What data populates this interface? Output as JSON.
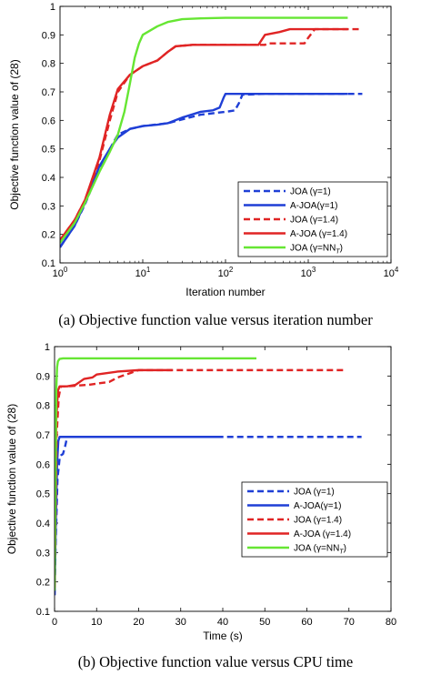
{
  "colors": {
    "blue": "#1f3fd6",
    "red": "#e02424",
    "green": "#66e633"
  },
  "legend_entries": [
    {
      "label": "JOA (γ=1)",
      "color": "blue",
      "style": "dashed"
    },
    {
      "label": "A-JOA(γ=1)",
      "color": "blue",
      "style": "solid"
    },
    {
      "label": "JOA (γ=1.4)",
      "color": "red",
      "style": "dashed"
    },
    {
      "label": "A-JOA (γ=1.4)",
      "color": "red",
      "style": "solid"
    },
    {
      "label": "JOA (γ=NN",
      "sub": "T",
      "tail": ")",
      "color": "green",
      "style": "solid"
    }
  ],
  "chart_data": [
    {
      "type": "line",
      "caption": "(a)  Objective function value versus iteration number",
      "xlabel": "Iteration number",
      "ylabel": "Objective function value of (28)",
      "xscale": "log",
      "xlim": [
        1,
        10000
      ],
      "ylim": [
        0.1,
        1
      ],
      "xticks": [
        1,
        10,
        100,
        1000,
        10000
      ],
      "xtick_labels": [
        {
          "base": "10",
          "exp": "0"
        },
        {
          "base": "10",
          "exp": "1"
        },
        {
          "base": "10",
          "exp": "2"
        },
        {
          "base": "10",
          "exp": "3"
        },
        {
          "base": "10",
          "exp": "4"
        }
      ],
      "yticks": [
        0.1,
        0.2,
        0.3,
        0.4,
        0.5,
        0.6,
        0.7,
        0.8,
        0.9,
        1
      ],
      "ytick_labels": [
        "0.1",
        "0.2",
        "0.3",
        "0.4",
        "0.5",
        "0.6",
        "0.7",
        "0.8",
        "0.9",
        "1"
      ],
      "legend_position": "center-right",
      "series": [
        {
          "legend": 0,
          "color": "blue",
          "style": "dashed",
          "x": [
            1,
            1.5,
            2,
            3,
            4,
            5,
            7,
            10,
            20,
            50,
            100,
            130,
            145,
            160,
            300,
            1000,
            2000,
            4500
          ],
          "y": [
            0.155,
            0.23,
            0.305,
            0.43,
            0.5,
            0.55,
            0.57,
            0.58,
            0.59,
            0.62,
            0.63,
            0.635,
            0.66,
            0.69,
            0.693,
            0.693,
            0.693,
            0.693
          ]
        },
        {
          "legend": 1,
          "color": "blue",
          "style": "solid",
          "x": [
            1,
            1.5,
            2,
            3,
            4,
            5,
            7,
            10,
            15,
            20,
            30,
            50,
            70,
            85,
            95,
            100,
            200,
            500,
            1000,
            3000
          ],
          "y": [
            0.155,
            0.23,
            0.31,
            0.44,
            0.5,
            0.54,
            0.57,
            0.58,
            0.585,
            0.59,
            0.61,
            0.63,
            0.635,
            0.645,
            0.68,
            0.693,
            0.693,
            0.693,
            0.693,
            0.693
          ]
        },
        {
          "legend": 2,
          "color": "red",
          "style": "dashed",
          "x": [
            1,
            1.5,
            2,
            3,
            4,
            5,
            7,
            10,
            15,
            20,
            25,
            40,
            100,
            300,
            320,
            900,
            1000,
            1200,
            1500,
            3000,
            4500
          ],
          "y": [
            0.18,
            0.25,
            0.32,
            0.46,
            0.6,
            0.7,
            0.76,
            0.79,
            0.81,
            0.84,
            0.86,
            0.865,
            0.865,
            0.865,
            0.87,
            0.87,
            0.89,
            0.92,
            0.92,
            0.92,
            0.92
          ]
        },
        {
          "legend": 3,
          "color": "red",
          "style": "solid",
          "x": [
            1,
            1.5,
            2,
            3,
            4,
            5,
            7,
            10,
            15,
            20,
            25,
            40,
            100,
            250,
            300,
            450,
            600,
            1300,
            3000
          ],
          "y": [
            0.18,
            0.25,
            0.32,
            0.47,
            0.62,
            0.71,
            0.76,
            0.79,
            0.81,
            0.84,
            0.86,
            0.865,
            0.865,
            0.865,
            0.9,
            0.91,
            0.92,
            0.92,
            0.92
          ]
        },
        {
          "legend": 4,
          "color": "green",
          "style": "solid",
          "x": [
            1,
            1.5,
            2,
            3,
            4,
            5,
            6,
            7,
            8,
            9,
            10,
            15,
            20,
            30,
            50,
            100,
            300,
            1000,
            3000
          ],
          "y": [
            0.17,
            0.24,
            0.31,
            0.42,
            0.49,
            0.55,
            0.63,
            0.73,
            0.82,
            0.87,
            0.9,
            0.93,
            0.945,
            0.955,
            0.958,
            0.96,
            0.96,
            0.96,
            0.96
          ]
        }
      ]
    },
    {
      "type": "line",
      "caption": "(b)  Objective function value versus CPU time",
      "xlabel": "Time (s)",
      "ylabel": "Objective function value of (28)",
      "xscale": "linear",
      "xlim": [
        0,
        80
      ],
      "ylim": [
        0.1,
        1
      ],
      "xticks": [
        0,
        10,
        20,
        30,
        40,
        50,
        60,
        70,
        80
      ],
      "xtick_labels": [
        "0",
        "10",
        "20",
        "30",
        "40",
        "50",
        "60",
        "70",
        "80"
      ],
      "yticks": [
        0.1,
        0.2,
        0.3,
        0.4,
        0.5,
        0.6,
        0.7,
        0.8,
        0.9,
        1
      ],
      "ytick_labels": [
        "0.1",
        "0.2",
        "0.3",
        "0.4",
        "0.5",
        "0.6",
        "0.7",
        "0.8",
        "0.9",
        "1"
      ],
      "legend_position": "bottom-right",
      "series": [
        {
          "legend": 0,
          "color": "blue",
          "style": "dashed",
          "x": [
            0,
            0.3,
            0.7,
            1.2,
            1.5,
            2.0,
            2.5,
            3.0,
            20,
            50,
            73
          ],
          "y": [
            0.155,
            0.35,
            0.55,
            0.62,
            0.63,
            0.635,
            0.66,
            0.693,
            0.693,
            0.693,
            0.693
          ]
        },
        {
          "legend": 1,
          "color": "blue",
          "style": "solid",
          "x": [
            0,
            0.3,
            0.6,
            0.9,
            1.2,
            10,
            40
          ],
          "y": [
            0.155,
            0.4,
            0.6,
            0.68,
            0.693,
            0.693,
            0.693
          ]
        },
        {
          "legend": 2,
          "color": "red",
          "style": "dashed",
          "x": [
            0,
            0.5,
            1.0,
            1.5,
            3,
            8,
            13,
            15,
            18,
            20,
            69
          ],
          "y": [
            0.18,
            0.7,
            0.83,
            0.865,
            0.865,
            0.87,
            0.88,
            0.895,
            0.91,
            0.92,
            0.92
          ]
        },
        {
          "legend": 3,
          "color": "red",
          "style": "solid",
          "x": [
            0,
            0.4,
            0.8,
            1.2,
            3,
            5,
            6,
            7,
            9,
            10,
            15,
            20,
            28
          ],
          "y": [
            0.18,
            0.75,
            0.85,
            0.865,
            0.865,
            0.87,
            0.88,
            0.89,
            0.895,
            0.905,
            0.915,
            0.92,
            0.92
          ]
        },
        {
          "legend": 4,
          "color": "green",
          "style": "solid",
          "x": [
            0,
            0.2,
            0.4,
            0.6,
            0.8,
            1.2,
            2,
            10,
            48
          ],
          "y": [
            0.17,
            0.5,
            0.85,
            0.93,
            0.95,
            0.958,
            0.96,
            0.96,
            0.96
          ]
        }
      ]
    }
  ]
}
